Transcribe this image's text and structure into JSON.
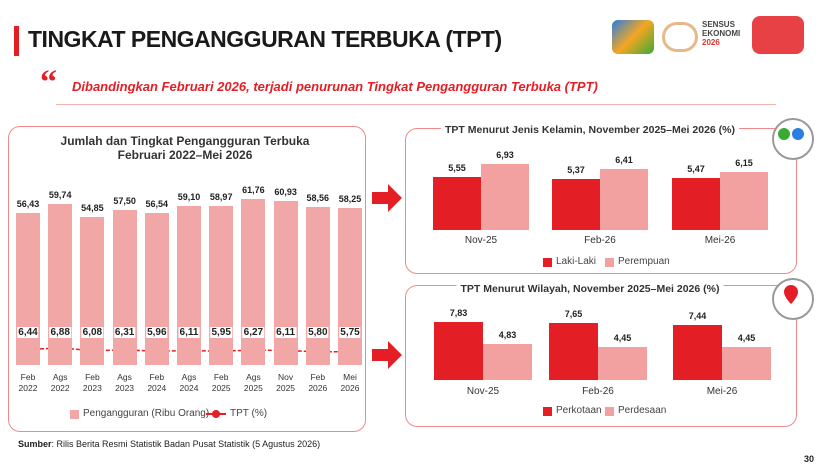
{
  "header": {
    "title": "TINGKAT PENGANGGURAN TERBUKA (TPT)",
    "logos": [
      "SENSUS",
      "EKONOMI",
      "2026"
    ]
  },
  "quote": "Dibandingkan Februari 2026, terjadi penurunan Tingkat Pengangguran Terbuka (TPT)",
  "source": {
    "label": "Sumber",
    "text": ": Rilis Berita Resmi Statistik Badan Pusat Statistik (5 Agustus 2026)"
  },
  "page_number": "30",
  "chart_data": [
    {
      "type": "bar",
      "title": "Jumlah dan Tingkat Pengangguran Terbuka Februari 2022–Mei 2026",
      "categories": [
        "Feb 2022",
        "Ags 2022",
        "Feb 2023",
        "Ags 2023",
        "Feb 2024",
        "Ags 2024",
        "Feb 2025",
        "Ags 2025",
        "Nov 2025",
        "Feb 2026",
        "Mei 2026"
      ],
      "series": [
        {
          "name": "Pengangguran (Ribu Orang)",
          "type": "bar",
          "color": "#f2a7a7",
          "values": [
            56.43,
            59.74,
            54.85,
            57.5,
            56.54,
            59.1,
            58.97,
            61.76,
            60.93,
            58.56,
            58.25
          ],
          "value_labels": [
            "56,43",
            "59,74",
            "54,85",
            "57,50",
            "56,54",
            "59,10",
            "58,97",
            "61,76",
            "60,93",
            "58,56",
            "58,25"
          ]
        },
        {
          "name": "TPT (%)",
          "type": "line",
          "color": "#e31e24",
          "values": [
            6.44,
            6.88,
            6.08,
            6.31,
            5.96,
            6.11,
            5.95,
            6.27,
            6.11,
            5.8,
            5.75
          ],
          "value_labels": [
            "6,44",
            "6,88",
            "6,08",
            "6,31",
            "5,96",
            "6,11",
            "5,95",
            "6,27",
            "6,11",
            "5,80",
            "5,75"
          ]
        }
      ]
    },
    {
      "type": "bar",
      "title": "TPT Menurut Jenis Kelamin, November 2025–Mei 2026 (%)",
      "categories": [
        "Nov-25",
        "Feb-26",
        "Mei-26"
      ],
      "series": [
        {
          "name": "Laki-Laki",
          "color": "#e31e24",
          "values": [
            5.55,
            5.37,
            5.47
          ],
          "value_labels": [
            "5,55",
            "5,37",
            "5,47"
          ]
        },
        {
          "name": "Perempuan",
          "color": "#f2a0a0",
          "values": [
            6.93,
            6.41,
            6.15
          ],
          "value_labels": [
            "6,93",
            "6,41",
            "6,15"
          ]
        }
      ]
    },
    {
      "type": "bar",
      "title": "TPT Menurut Wilayah, November 2025–Mei 2026 (%)",
      "categories": [
        "Nov-25",
        "Feb-26",
        "Mei-26"
      ],
      "series": [
        {
          "name": "Perkotaan",
          "color": "#e31e24",
          "values": [
            7.83,
            7.65,
            7.44
          ],
          "value_labels": [
            "7,83",
            "7,65",
            "7,44"
          ]
        },
        {
          "name": "Perdesaan",
          "color": "#f2a0a0",
          "values": [
            4.83,
            4.45,
            4.45
          ],
          "value_labels": [
            "4,83",
            "4,45",
            "4,45"
          ]
        }
      ]
    }
  ]
}
